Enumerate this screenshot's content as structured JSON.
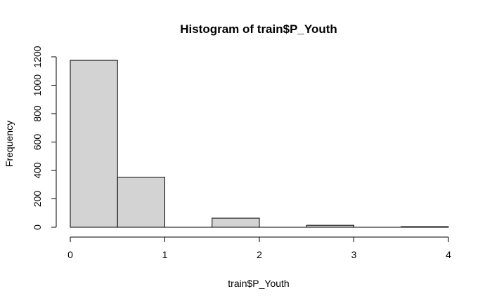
{
  "chart_data": {
    "type": "bar",
    "title": "Histogram of train$P_Youth",
    "xlabel": "train$P_Youth",
    "ylabel": "Frequency",
    "bins": [
      {
        "x0": 0.0,
        "x1": 0.5,
        "value": 1175
      },
      {
        "x0": 0.5,
        "x1": 1.0,
        "value": 352
      },
      {
        "x0": 1.0,
        "x1": 1.5,
        "value": 0
      },
      {
        "x0": 1.5,
        "x1": 2.0,
        "value": 64
      },
      {
        "x0": 2.0,
        "x1": 2.5,
        "value": 0
      },
      {
        "x0": 2.5,
        "x1": 3.0,
        "value": 14
      },
      {
        "x0": 3.0,
        "x1": 3.5,
        "value": 0
      },
      {
        "x0": 3.5,
        "x1": 4.0,
        "value": 4
      }
    ],
    "xlim": [
      0,
      4
    ],
    "ylim": [
      0,
      1200
    ],
    "x_ticks": [
      "0",
      "1",
      "2",
      "3",
      "4"
    ],
    "y_ticks": [
      "0",
      "200",
      "400",
      "600",
      "800",
      "1000",
      "1200"
    ],
    "grid": false,
    "colors": {
      "bar_fill": "#d3d3d3",
      "bar_stroke": "#000000"
    }
  }
}
